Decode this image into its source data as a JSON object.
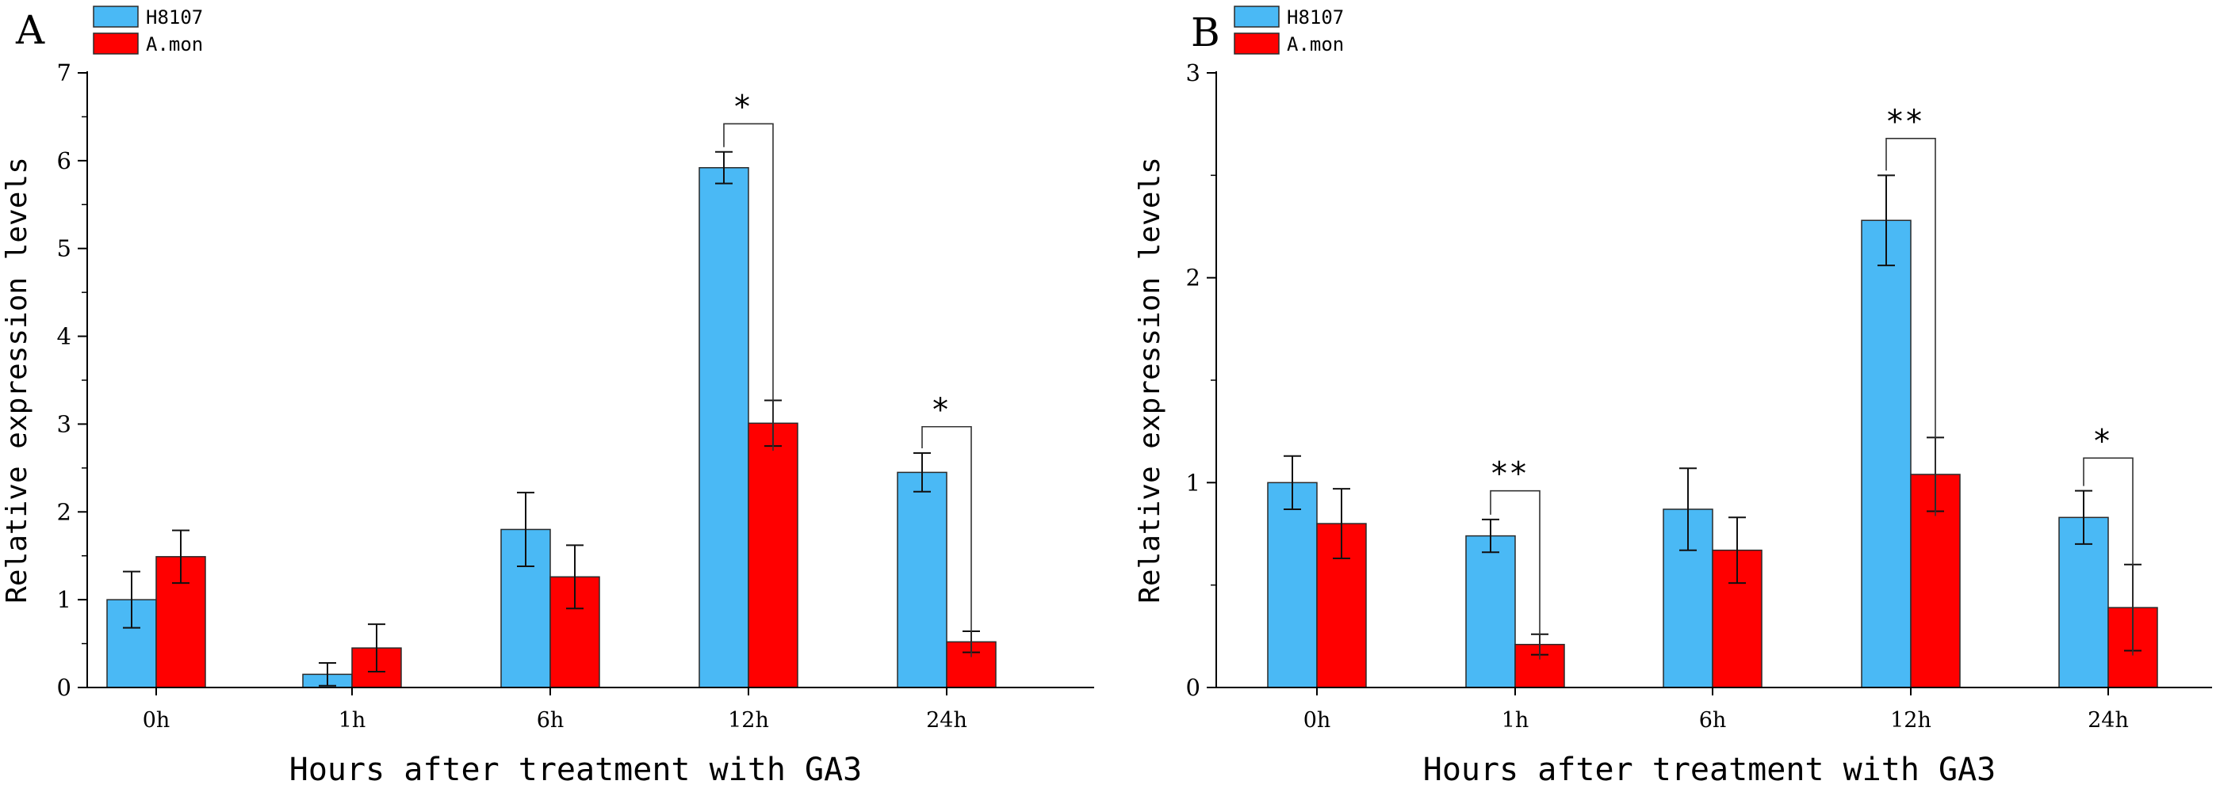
{
  "colors": {
    "h8107": "#4ab9f5",
    "amon": "#ff0000",
    "axis": "#000000",
    "bar_edge": "#2a2a2a"
  },
  "chart_data": [
    {
      "panel_label": "A",
      "type": "bar",
      "categories": [
        "0h",
        "1h",
        "6h",
        "12h",
        "24h"
      ],
      "series": [
        {
          "name": "H8107",
          "values": [
            1.0,
            0.15,
            1.8,
            5.92,
            2.45
          ],
          "errors": [
            0.32,
            0.13,
            0.42,
            0.18,
            0.22
          ]
        },
        {
          "name": "A.mon",
          "values": [
            1.49,
            0.45,
            1.26,
            3.01,
            0.52
          ],
          "errors": [
            0.3,
            0.27,
            0.36,
            0.26,
            0.12
          ]
        }
      ],
      "ylim": [
        0,
        7
      ],
      "yticks": [
        "0",
        "1",
        "2",
        "3",
        "4",
        "5",
        "6",
        "7"
      ],
      "ylabel": "Relative expression levels",
      "xlabel": "Hours after treatment with GA3",
      "legend_position": "top-left",
      "significance": [
        {
          "category": "12h",
          "label": "*",
          "bracket_top": 6.42
        },
        {
          "category": "24h",
          "label": "*",
          "bracket_top": 2.97
        }
      ]
    },
    {
      "panel_label": "B",
      "type": "bar",
      "categories": [
        "0h",
        "1h",
        "6h",
        "12h",
        "24h"
      ],
      "series": [
        {
          "name": "H8107",
          "values": [
            1.0,
            0.74,
            0.87,
            2.28,
            0.83
          ],
          "errors": [
            0.13,
            0.08,
            0.2,
            0.22,
            0.13
          ]
        },
        {
          "name": "A.mon",
          "values": [
            0.8,
            0.21,
            0.67,
            1.04,
            0.39
          ],
          "errors": [
            0.17,
            0.05,
            0.16,
            0.18,
            0.21
          ]
        }
      ],
      "ylim": [
        0,
        3
      ],
      "yticks": [
        "0",
        "1",
        "2",
        "3"
      ],
      "ylabel": "Relative expression levels",
      "xlabel": "Hours after treatment with GA3",
      "legend_position": "top-left",
      "significance": [
        {
          "category": "1h",
          "label": "**",
          "bracket_top": 0.96
        },
        {
          "category": "12h",
          "label": "**",
          "bracket_top": 2.68
        },
        {
          "category": "24h",
          "label": "*",
          "bracket_top": 1.12
        }
      ]
    }
  ]
}
